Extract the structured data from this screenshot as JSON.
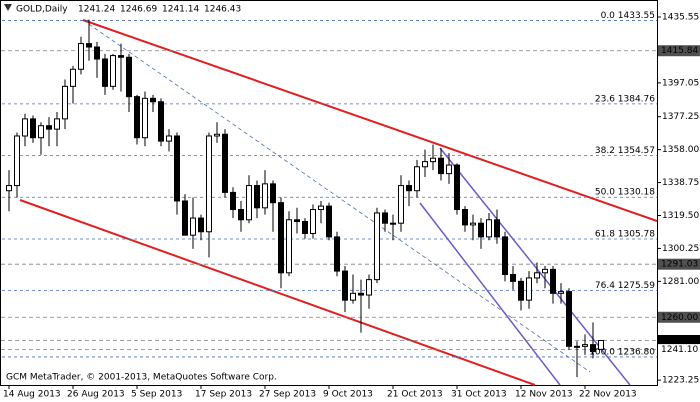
{
  "chart_data": {
    "type": "candlestick",
    "title": "GOLD,Daily",
    "footer": "GCM MetaTrader, © 2001-2013, MetaQuotes Software Corp.",
    "up_color": "#ffffff",
    "down_color": "#000000",
    "categories": [
      "14 Aug 2013",
      null,
      null,
      null,
      null,
      null,
      null,
      null,
      "26 Aug 2013",
      null,
      null,
      null,
      null,
      null,
      null,
      null,
      "5 Sep 2013",
      null,
      null,
      null,
      null,
      null,
      null,
      null,
      "17 Sep 2013",
      null,
      null,
      null,
      null,
      null,
      null,
      null,
      "27 Sep 2013",
      null,
      null,
      null,
      null,
      null,
      null,
      null,
      "9 Oct 2013",
      null,
      null,
      null,
      null,
      null,
      null,
      null,
      "21 Oct 2013",
      null,
      null,
      null,
      null,
      null,
      null,
      null,
      "31 Oct 2013",
      null,
      null,
      null,
      null,
      null,
      null,
      null,
      "12 Nov 2013",
      null,
      null,
      null,
      null,
      null,
      null,
      null,
      "22 Nov 2013",
      null,
      null
    ],
    "open": [
      1334,
      1337,
      1366,
      1376,
      1365,
      1372,
      1370,
      1376,
      1395,
      1405,
      1420,
      1418,
      1411,
      1395,
      1413,
      1412,
      1389,
      1365,
      1388,
      1386,
      1363,
      1366,
      1328,
      1308,
      1318,
      1310,
      1366,
      1367,
      1333,
      1323,
      1317,
      1337,
      1324,
      1338,
      1327,
      1286,
      1317,
      1316,
      1309,
      1323,
      1325,
      1307,
      1287,
      1270,
      1274,
      1273,
      1282,
      1321,
      1315,
      1315,
      1337,
      1334,
      1348,
      1351,
      1353,
      1344,
      1349,
      1323,
      1314,
      1315,
      1307,
      1317,
      1307,
      1285,
      1281,
      1270,
      1283,
      1286,
      1288,
      1274,
      1275,
      1243,
      1243,
      1244,
      1241.24
    ],
    "high": [
      1346,
      1368,
      1379,
      1378,
      1374,
      1377,
      1380,
      1399,
      1407,
      1424,
      1434,
      1421,
      1414,
      1414,
      1420,
      1414,
      1390,
      1392,
      1390,
      1388,
      1370,
      1368,
      1332,
      1330,
      1320,
      1368,
      1374,
      1370,
      1336,
      1328,
      1343,
      1340,
      1346,
      1340,
      1330,
      1322,
      1324,
      1318,
      1326,
      1328,
      1327,
      1310,
      1290,
      1285,
      1282,
      1285,
      1324,
      1323,
      1320,
      1343,
      1340,
      1352,
      1358,
      1361,
      1359,
      1356,
      1350,
      1325,
      1320,
      1318,
      1321,
      1323,
      1310,
      1290,
      1283,
      1287,
      1292,
      1290,
      1290,
      1280,
      1277,
      1246,
      1250,
      1257,
      1246.69
    ],
    "low": [
      1322,
      1330,
      1360,
      1362,
      1355,
      1360,
      1360,
      1370,
      1385,
      1402,
      1410,
      1400,
      1390,
      1393,
      1392,
      1380,
      1361,
      1360,
      1380,
      1360,
      1357,
      1320,
      1308,
      1300,
      1305,
      1295,
      1362,
      1330,
      1318,
      1310,
      1315,
      1318,
      1320,
      1310,
      1277,
      1284,
      1309,
      1306,
      1306,
      1315,
      1305,
      1284,
      1263,
      1268,
      1251,
      1265,
      1280,
      1310,
      1305,
      1310,
      1325,
      1330,
      1342,
      1346,
      1340,
      1338,
      1320,
      1310,
      1305,
      1300,
      1305,
      1303,
      1281,
      1276,
      1264,
      1265,
      1280,
      1277,
      1268,
      1268,
      1241,
      1225,
      1238,
      1236,
      1241.14
    ],
    "close": [
      1337,
      1366,
      1376,
      1365,
      1372,
      1370,
      1376,
      1395,
      1405,
      1420,
      1418,
      1411,
      1395,
      1413,
      1412,
      1389,
      1365,
      1388,
      1386,
      1363,
      1366,
      1328,
      1308,
      1318,
      1310,
      1366,
      1367,
      1333,
      1323,
      1317,
      1337,
      1324,
      1338,
      1327,
      1286,
      1317,
      1316,
      1309,
      1323,
      1325,
      1307,
      1287,
      1270,
      1274,
      1273,
      1282,
      1321,
      1315,
      1315,
      1337,
      1334,
      1348,
      1351,
      1353,
      1344,
      1349,
      1323,
      1314,
      1315,
      1307,
      1317,
      1307,
      1285,
      1281,
      1270,
      1283,
      1286,
      1288,
      1274,
      1275,
      1243,
      1243,
      1244,
      1240,
      1246.43
    ],
    "ylim": [
      1220.4,
      1445.5
    ],
    "yticks": [
      1435.55,
      1397.05,
      1377.25,
      {
        "value": 1358,
        "label": "1358.00"
      },
      1338.75,
      {
        "value": 1319.5,
        "label": "1319.50"
      },
      1300.25,
      {
        "value": 1281,
        "label": "1281.00"
      },
      1223.25
    ],
    "price_lines": [
      {
        "value": 1415.84,
        "label": "1415.84",
        "background": "#505050",
        "color": "#ffffff"
      },
      {
        "value": 1291.03,
        "label": "1291.03",
        "background": "#505050",
        "color": "#ffffff"
      },
      {
        "value": 1260,
        "label": "1260.00",
        "background": "#505050",
        "color": "#ffffff"
      },
      {
        "value": 1246.43,
        "label": "1246.43",
        "background": "#000000",
        "color": "#ffffff"
      },
      {
        "value": 1241.1,
        "label": "1241.10",
        "background": "#ffffff",
        "color": "#000000"
      }
    ],
    "fib_levels": [
      {
        "value": 1433.55,
        "label": "0.0 1433.55"
      },
      {
        "value": 1384.76,
        "label": "23.6 1384.76"
      },
      {
        "value": 1354.57,
        "label": "38.2 1354.57"
      },
      {
        "value": 1330.18,
        "label": "50.0 1330.18"
      },
      {
        "value": 1305.78,
        "label": "61.8 1305.78"
      },
      {
        "value": 1275.59,
        "label": "76.4 1275.59"
      },
      {
        "value": 1236.8,
        "label": "100.0 1236.80"
      }
    ]
  }
}
